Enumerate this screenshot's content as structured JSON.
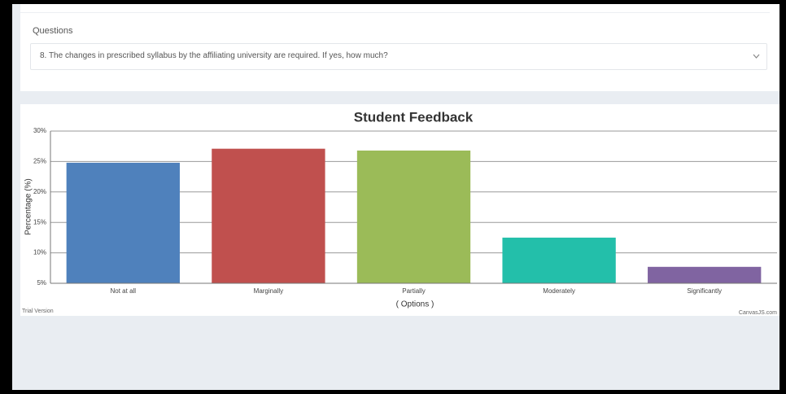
{
  "questions_panel": {
    "label": "Questions",
    "selected": "8. The changes in prescribed syllabus by the affiliating university are required. If yes, how much?"
  },
  "chart_data": {
    "type": "bar",
    "title": "Student Feedback",
    "categories": [
      "Not at all",
      "Marginally",
      "Partially",
      "Moderately",
      "Significantly"
    ],
    "values": [
      24.8,
      27.1,
      26.8,
      12.5,
      7.7
    ],
    "colors": [
      "#4f81bc",
      "#c0504e",
      "#9bbb58",
      "#23bfaa",
      "#8064a1"
    ],
    "x_label": "( Options )",
    "y_label": "Percentage (%)",
    "ylim": [
      5,
      30
    ],
    "yticks": [
      {
        "value": 5,
        "label": "5%"
      },
      {
        "value": 10,
        "label": "10%"
      },
      {
        "value": 15,
        "label": "15%"
      },
      {
        "value": 20,
        "label": "20%"
      },
      {
        "value": 25,
        "label": "25%"
      },
      {
        "value": 30,
        "label": "30%"
      }
    ],
    "grid": true
  },
  "footer": {
    "left": "Trial Version",
    "right": "CanvasJS.com"
  }
}
